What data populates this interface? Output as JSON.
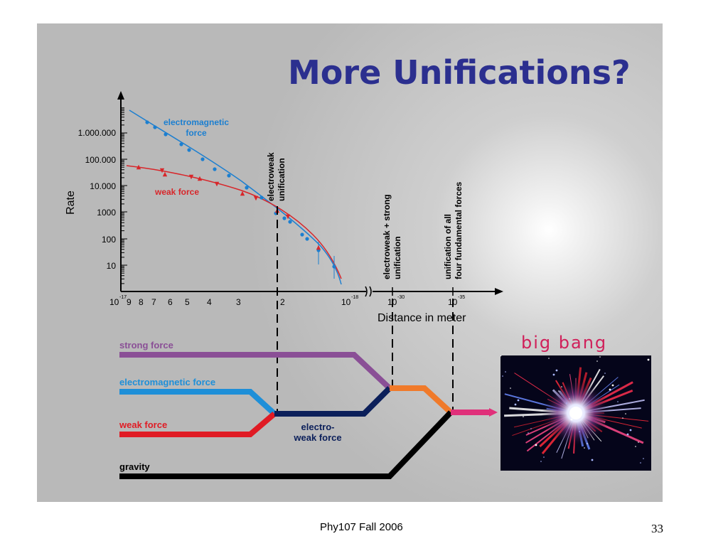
{
  "slide": {
    "title": "More Unifications?",
    "footer": "Phy107 Fall 2006",
    "page_number": "33"
  },
  "plot": {
    "ylabel": "Rate",
    "y_ticks": [
      "1.000.000",
      "100.000",
      "10.000",
      "1000",
      "100",
      "10"
    ],
    "x_ticks": [
      "9",
      "8",
      "7",
      "6",
      "5",
      "4",
      "3",
      "2"
    ],
    "x_exp_start": {
      "base": "10",
      "exp": "-17"
    },
    "x_exp_end": {
      "base": "10",
      "exp": "-18"
    },
    "x_exp_30": {
      "base": "10",
      "exp": "-30"
    },
    "x_exp_35": {
      "base": "10",
      "exp": "-35"
    },
    "xlabel": "Distance in meter",
    "series_em": "electromagnetic\nforce",
    "series_em_line1": "electromagnetic",
    "series_em_line2": "force",
    "series_weak": "weak force",
    "annot_ew_1": "electroweak",
    "annot_ew_2": "unification",
    "annot_ews_1": "electroweak + strong",
    "annot_ews_2": "unification",
    "annot_all_1": "unification of all",
    "annot_all_2": "four fundamental forces"
  },
  "forces": {
    "strong": "strong force",
    "electromagnetic": "electromagnetic force",
    "weak": "weak force",
    "gravity": "gravity",
    "electroweak_1": "electro-",
    "electroweak_2": "weak force"
  },
  "big_bang": {
    "label": "big bang"
  },
  "colors": {
    "title": "#2b2f8f",
    "strong": "#8a4f96",
    "electromagnetic": "#1e8fd8",
    "weak": "#e01b24",
    "gravity": "#000000",
    "electroweak": "#0b1f5a",
    "ew_strong": "#f07a2a",
    "all": "#e0307a",
    "em_data": "#1c7fd0",
    "weak_data": "#d8262a"
  }
}
